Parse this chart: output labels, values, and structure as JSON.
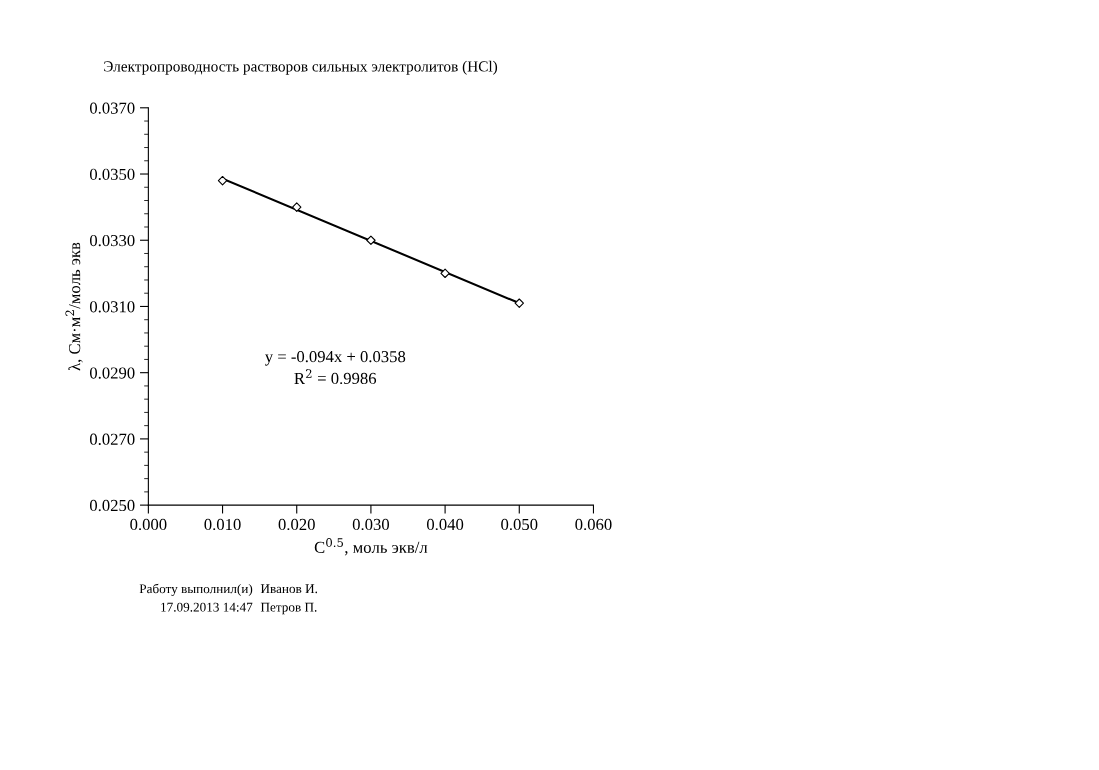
{
  "chart_data": {
    "type": "scatter",
    "title": "Электропроводность растворов сильных электролитов (HCl)",
    "xlabel": "C$^{0.5}$, моль экв/л",
    "ylabel": "λ, См·м$^{2}$/моль экв",
    "series": [
      {
        "color": "#000000",
        "marker": "diamond",
        "x": [
          0.01,
          0.02,
          0.03,
          0.04,
          0.05
        ],
        "values": [
          0.0348,
          0.034,
          0.033,
          0.032,
          0.0311
        ]
      },
      {
        "type": "line",
        "color": "#000000",
        "marker": "none",
        "line_style": "solid",
        "x": [
          0.01,
          0.05
        ],
        "values": [
          0.03486,
          0.0311
        ]
      }
    ],
    "xlim": [
      0.0,
      0.06
    ],
    "xticks": [
      {
        "value": 0.0,
        "label": "0.000"
      },
      {
        "value": 0.01,
        "label": "0.010"
      },
      {
        "value": 0.02,
        "label": "0.020"
      },
      {
        "value": 0.03,
        "label": "0.030"
      },
      {
        "value": 0.04,
        "label": "0.040"
      },
      {
        "value": 0.05,
        "label": "0.050"
      },
      {
        "value": 0.06,
        "label": "0.060"
      }
    ],
    "ylim": [
      0.025,
      0.037
    ],
    "yticks": [
      {
        "value": 0.025,
        "label": "0.0250"
      },
      {
        "value": 0.027,
        "label": "0.0270"
      },
      {
        "value": 0.029,
        "label": "0.0290"
      },
      {
        "value": 0.031,
        "label": "0.0310"
      },
      {
        "value": 0.033,
        "label": "0.0330"
      },
      {
        "value": 0.035,
        "label": "0.0350"
      },
      {
        "value": 0.037,
        "label": "0.0370"
      }
    ],
    "grid": false,
    "legend": false,
    "annotations": [
      "y = -0.094x + 0.0358",
      "R$^{2}$ = 0.9986",
      "Работу выполнил(и)",
      "17.09.2013 14:47",
      "Иванов И.",
      "Петров П."
    ]
  }
}
